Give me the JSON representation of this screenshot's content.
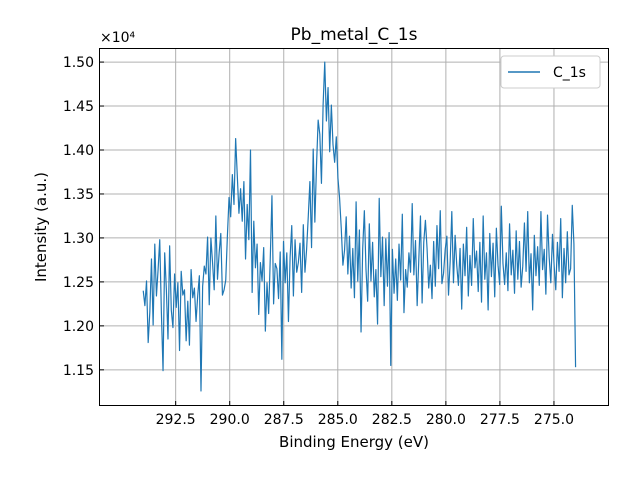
{
  "chart_data": {
    "type": "line",
    "title": "Pb_metal_C_1s",
    "xlabel": "Binding Energy (eV)",
    "ylabel": "Intensity (a.u.)",
    "y_offset_label": "×10⁴",
    "y_scale": 10000,
    "xlim": [
      296.0,
      272.5
    ],
    "ylim": [
      11100,
      15160
    ],
    "x_inverted": true,
    "grid": true,
    "legend_position": "top-right",
    "xticks": [
      292.5,
      290.0,
      287.5,
      285.0,
      282.5,
      280.0,
      277.5,
      275.0
    ],
    "xtick_labels": [
      "292.5",
      "290.0",
      "287.5",
      "285.0",
      "282.5",
      "280.0",
      "277.5",
      "275.0"
    ],
    "yticks": [
      11500,
      12000,
      12500,
      13000,
      13500,
      14000,
      14500,
      15000
    ],
    "ytick_labels": [
      "1.15",
      "1.20",
      "1.25",
      "1.30",
      "1.35",
      "1.40",
      "1.45",
      "1.50"
    ],
    "series": [
      {
        "name": "C_1s",
        "color": "#1f77b4",
        "x_start": 294.0,
        "x_end": 274.0,
        "y": [
          12400,
          12230,
          12510,
          11810,
          12160,
          12760,
          12010,
          12930,
          12340,
          12640,
          12980,
          12150,
          11490,
          12830,
          12420,
          11850,
          12910,
          12180,
          11980,
          12590,
          12210,
          12490,
          11720,
          12620,
          12350,
          12410,
          11830,
          12280,
          11780,
          12640,
          12320,
          12430,
          12050,
          12340,
          12570,
          11260,
          12450,
          12680,
          12590,
          13010,
          12240,
          13000,
          12720,
          12410,
          13250,
          12530,
          12830,
          13050,
          12350,
          12410,
          12520,
          13020,
          13460,
          13240,
          13720,
          13380,
          14130,
          13710,
          13280,
          13560,
          13190,
          13640,
          12760,
          13380,
          12980,
          14000,
          12380,
          13190,
          12660,
          12930,
          12130,
          12720,
          12510,
          12890,
          11940,
          12490,
          12140,
          12780,
          13480,
          12250,
          12710,
          12650,
          12310,
          12840,
          11620,
          12960,
          12490,
          12830,
          12050,
          12780,
          13140,
          12340,
          12980,
          12610,
          12720,
          12940,
          12380,
          13150,
          12610,
          12870,
          13240,
          13640,
          12890,
          14010,
          13180,
          13820,
          14340,
          14180,
          13620,
          14510,
          15000,
          14330,
          14710,
          13980,
          14510,
          14060,
          13860,
          14150,
          13680,
          13450,
          13110,
          12690,
          12860,
          13240,
          12590,
          13020,
          12430,
          12880,
          12320,
          13410,
          12510,
          13090,
          11930,
          12880,
          13310,
          12640,
          12280,
          13160,
          12510,
          12950,
          12330,
          12640,
          12020,
          13450,
          12560,
          13010,
          12230,
          12990,
          12450,
          13060,
          11550,
          12870,
          12370,
          12760,
          12290,
          12930,
          12520,
          13270,
          12150,
          12640,
          12440,
          12830,
          12610,
          13390,
          12580,
          12970,
          12230,
          12760,
          13250,
          12260,
          12950,
          13200,
          12880,
          12430,
          12690,
          12310,
          12960,
          12450,
          13140,
          12650,
          13310,
          12480,
          12600,
          12870,
          13020,
          12350,
          12730,
          13300,
          12490,
          13030,
          12690,
          12460,
          12880,
          12190,
          12930,
          12570,
          13120,
          12340,
          12800,
          12460,
          13220,
          12660,
          12850,
          12390,
          12950,
          12270,
          13250,
          12530,
          12830,
          12180,
          13050,
          12560,
          12940,
          12330,
          13110,
          12690,
          12470,
          13360,
          12710,
          12470,
          12830,
          12400,
          13160,
          12580,
          12860,
          12370,
          13080,
          12530,
          12960,
          12440,
          12680,
          13170,
          12620,
          13300,
          12490,
          12820,
          12180,
          13030,
          12570,
          12900,
          12460,
          13300,
          12640,
          12870,
          12360,
          13260,
          12780,
          12490,
          13040,
          12690,
          12410,
          12950,
          12620,
          13220,
          12320,
          12880,
          12490,
          13070,
          12580,
          12650,
          13370,
          12930,
          11530
        ]
      }
    ]
  }
}
